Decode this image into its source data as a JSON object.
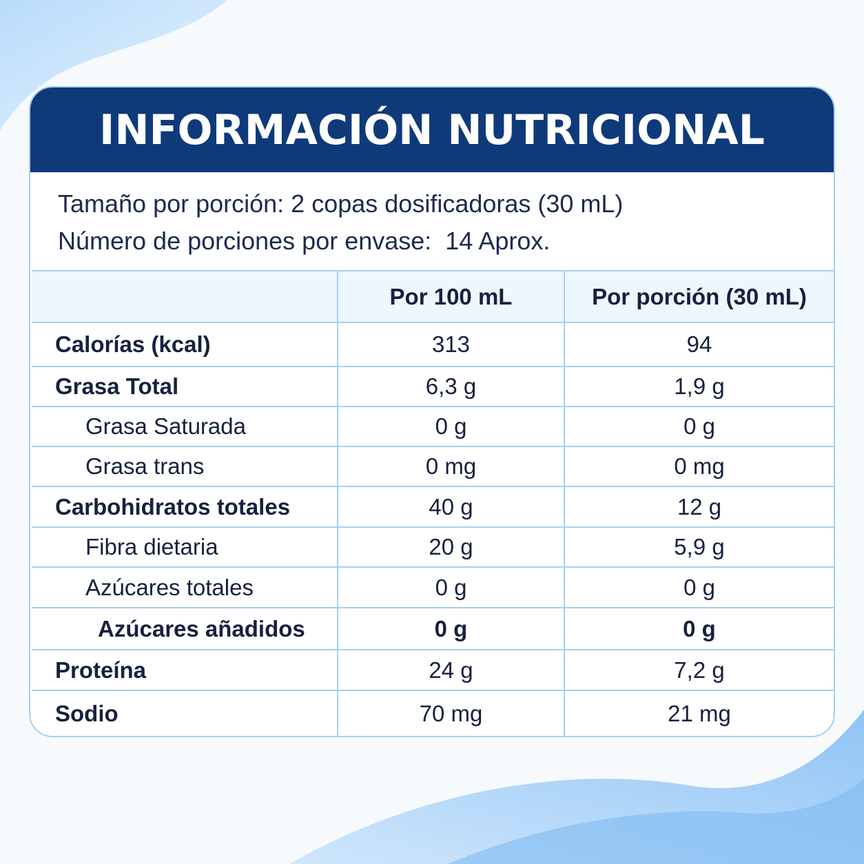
{
  "header": {
    "title": "INFORMACIÓN NUTRICIONAL"
  },
  "serving": {
    "size": "Tamaño por porción: 2 copas dosificadoras (30 mL)",
    "servings": "Número de porciones por envase:  14 Aprox."
  },
  "table": {
    "columns": [
      "Por 100 mL",
      "Por porción (30 mL)"
    ],
    "rows": [
      [
        "Calorías (kcal)",
        "313",
        "94"
      ],
      [
        "Grasa Total",
        "6,3 g",
        "1,9 g"
      ],
      [
        "Grasa Saturada",
        "0 g",
        "0 g"
      ],
      [
        "Grasa trans",
        "0 mg",
        "0 mg"
      ],
      [
        "Carbohidratos totales",
        "40 g",
        "12 g"
      ],
      [
        "Fibra dietaria",
        "20 g",
        "5,9 g"
      ],
      [
        "Azúcares totales",
        "0 g",
        "0 g"
      ],
      [
        "Azúcares añadidos",
        "0 g",
        "0 g"
      ],
      [
        "Proteína",
        "24 g",
        "7,2 g"
      ],
      [
        "Sodio",
        "70 mg",
        "21 mg"
      ]
    ]
  }
}
